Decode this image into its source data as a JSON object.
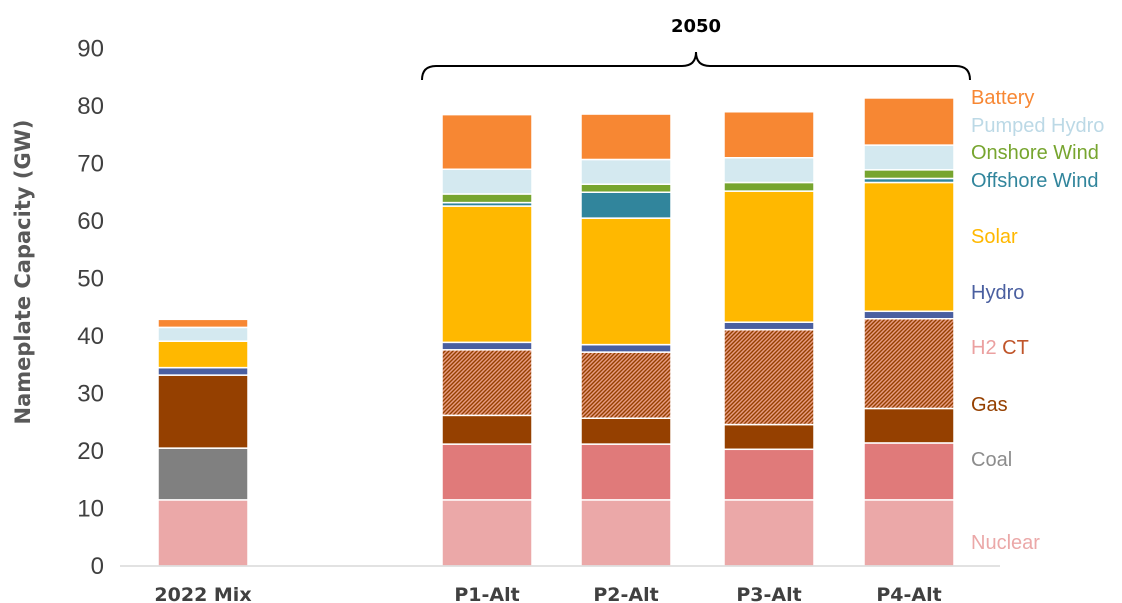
{
  "chart_data": {
    "type": "bar",
    "stacked": true,
    "ylabel": "Nameplate Capacity (GW)",
    "ylim": [
      0,
      90
    ],
    "yticks": [
      "0",
      "10",
      "20",
      "30",
      "40",
      "50",
      "60",
      "70",
      "80",
      "90"
    ],
    "categories": [
      "2022 Mix",
      "P1-Alt",
      "P2-Alt",
      "P3-Alt",
      "P4-Alt"
    ],
    "group_label": "2050",
    "legend_placement": "right",
    "series": [
      {
        "name": "Nuclear",
        "color": "#eba8a8",
        "pattern": false,
        "values": [
          11.5,
          11.5,
          11.5,
          11.5,
          11.5
        ]
      },
      {
        "name": "Coal",
        "color": "#808080",
        "pattern": false,
        "values": [
          9.0,
          0,
          0,
          0,
          0
        ]
      },
      {
        "name": "",
        "color": "#e07a7a",
        "pattern": false,
        "values": [
          0,
          9.7,
          9.7,
          8.8,
          9.9
        ]
      },
      {
        "name": "Gas",
        "color": "#954000",
        "pattern": false,
        "values": [
          12.7,
          5.0,
          4.5,
          4.3,
          6.0
        ]
      },
      {
        "name": "H2 CT",
        "color": "#c06a3a",
        "pattern": true,
        "values": [
          0,
          11.4,
          11.5,
          16.5,
          15.6
        ]
      },
      {
        "name": "Hydro",
        "color": "#4a5fa0",
        "pattern": false,
        "values": [
          1.3,
          1.3,
          1.3,
          1.3,
          1.3
        ]
      },
      {
        "name": "Solar",
        "color": "#ffb800",
        "pattern": false,
        "values": [
          4.6,
          23.7,
          22.0,
          22.8,
          22.4
        ]
      },
      {
        "name": "Offshore Wind",
        "color": "#31859c",
        "pattern": false,
        "values": [
          0,
          0.6,
          4.5,
          0,
          0.7
        ]
      },
      {
        "name": "Onshore Wind",
        "color": "#77a52f",
        "pattern": false,
        "values": [
          0,
          1.5,
          1.4,
          1.5,
          1.5
        ]
      },
      {
        "name": "Pumped Hydro",
        "color": "#d4e9f0",
        "pattern": false,
        "values": [
          2.4,
          4.3,
          4.3,
          4.3,
          4.3
        ]
      },
      {
        "name": "Battery",
        "color": "#f78733",
        "pattern": false,
        "values": [
          1.4,
          9.5,
          7.9,
          8.0,
          8.2
        ]
      }
    ],
    "legend": [
      {
        "label": "Battery",
        "color": "#f78733"
      },
      {
        "label": "Pumped Hydro",
        "color": "#bcd9e6"
      },
      {
        "label": "Onshore Wind",
        "color": "#77a52f"
      },
      {
        "label": "Offshore Wind",
        "color": "#31859c"
      },
      {
        "label": "Solar",
        "color": "#ffb800"
      },
      {
        "label": "Hydro",
        "color": "#4a5fa0"
      },
      {
        "label": "H2",
        "color": "#eba0a0",
        "label2": "CT",
        "color2": "#c0552a"
      },
      {
        "label": "Gas",
        "color": "#954000"
      },
      {
        "label": "Coal",
        "color": "#8c8c8c"
      },
      {
        "label": "Nuclear",
        "color": "#eba8a8"
      }
    ]
  }
}
